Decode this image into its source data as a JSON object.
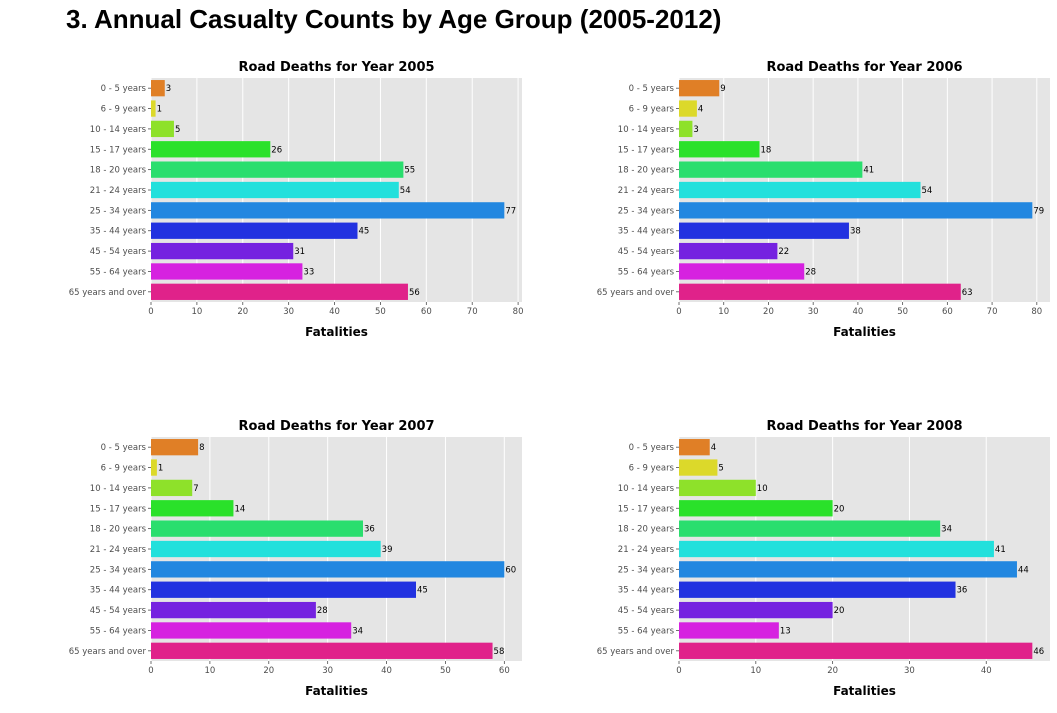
{
  "page": {
    "title": "3. Annual Casualty Counts by Age Group (2005-2012)"
  },
  "colors": {
    "plot_background": "#e5e5e5",
    "grid": "#ffffff",
    "bars": [
      "#e07f26",
      "#dcd92a",
      "#8ee12a",
      "#2ae12a",
      "#2ade6e",
      "#22e0dc",
      "#2287e0",
      "#2232e0",
      "#7522e0",
      "#d622e0",
      "#e0228a"
    ]
  },
  "chart_data": [
    {
      "type": "bar",
      "orientation": "horizontal",
      "title": "Road Deaths for Year 2005",
      "xlabel": "Fatalities",
      "categories": [
        "0 - 5 years",
        "6 - 9 years",
        "10 - 14 years",
        "15 - 17 years",
        "18 - 20 years",
        "21 - 24 years",
        "25 - 34 years",
        "35 - 44 years",
        "45 - 54 years",
        "55 - 64 years",
        "65 years and over"
      ],
      "values": [
        3,
        1,
        5,
        26,
        55,
        54,
        77,
        45,
        31,
        33,
        56
      ],
      "xlim": [
        0,
        80.85
      ],
      "xticks": [
        0,
        10,
        20,
        30,
        40,
        50,
        60,
        70,
        80
      ],
      "grid": true,
      "data_labels": true
    },
    {
      "type": "bar",
      "orientation": "horizontal",
      "title": "Road Deaths for Year 2006",
      "xlabel": "Fatalities",
      "categories": [
        "0 - 5 years",
        "6 - 9 years",
        "10 - 14 years",
        "15 - 17 years",
        "18 - 20 years",
        "21 - 24 years",
        "25 - 34 years",
        "35 - 44 years",
        "45 - 54 years",
        "55 - 64 years",
        "65 years and over"
      ],
      "values": [
        9,
        4,
        3,
        18,
        41,
        54,
        79,
        38,
        22,
        28,
        63
      ],
      "xlim": [
        0,
        82.95
      ],
      "xticks": [
        0,
        10,
        20,
        30,
        40,
        50,
        60,
        70,
        80
      ],
      "grid": true,
      "data_labels": true
    },
    {
      "type": "bar",
      "orientation": "horizontal",
      "title": "Road Deaths for Year 2007",
      "xlabel": "Fatalities",
      "categories": [
        "0 - 5 years",
        "6 - 9 years",
        "10 - 14 years",
        "15 - 17 years",
        "18 - 20 years",
        "21 - 24 years",
        "25 - 34 years",
        "35 - 44 years",
        "45 - 54 years",
        "55 - 64 years",
        "65 years and over"
      ],
      "values": [
        8,
        1,
        7,
        14,
        36,
        39,
        60,
        45,
        28,
        34,
        58
      ],
      "xlim": [
        0,
        63
      ],
      "xticks": [
        0,
        10,
        20,
        30,
        40,
        50,
        60
      ],
      "grid": true,
      "data_labels": true
    },
    {
      "type": "bar",
      "orientation": "horizontal",
      "title": "Road Deaths for Year 2008",
      "xlabel": "Fatalities",
      "categories": [
        "0 - 5 years",
        "6 - 9 years",
        "10 - 14 years",
        "15 - 17 years",
        "18 - 20 years",
        "21 - 24 years",
        "25 - 34 years",
        "35 - 44 years",
        "45 - 54 years",
        "55 - 64 years",
        "65 years and over"
      ],
      "values": [
        4,
        5,
        10,
        20,
        34,
        41,
        44,
        36,
        20,
        13,
        46
      ],
      "xlim": [
        0,
        48.3
      ],
      "xticks": [
        0,
        10,
        20,
        30,
        40
      ],
      "grid": true,
      "data_labels": true
    }
  ]
}
